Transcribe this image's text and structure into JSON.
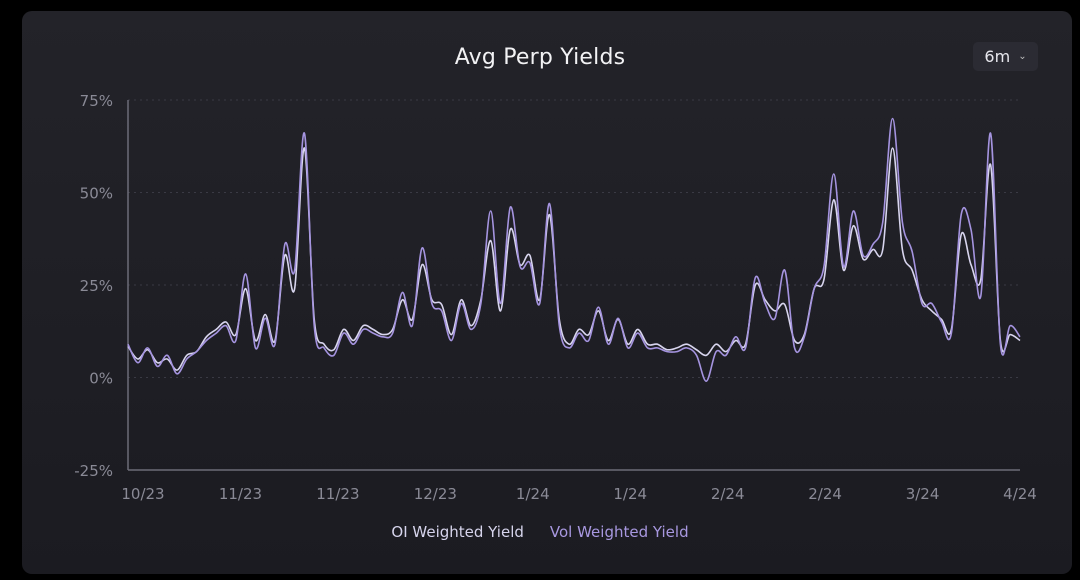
{
  "header": {
    "title": "Avg Perp Yields",
    "range_selector": "6m",
    "range_chevron": "⌄"
  },
  "colors": {
    "oi": "#d8d5ee",
    "vol": "#a594e0",
    "grid": "#3a3a44",
    "axis": "#6c6c78",
    "tick": "#8a8a96"
  },
  "chart_data": {
    "type": "line",
    "title": "Avg Perp Yields",
    "xlabel": "",
    "ylabel": "",
    "ylim": [
      -25,
      75
    ],
    "yticks": [
      75,
      50,
      25,
      0,
      -25
    ],
    "ytick_labels": [
      "75%",
      "50%",
      "25%",
      "0%",
      "-25%"
    ],
    "xtick_labels": [
      "10/23",
      "11/23",
      "11/23",
      "12/23",
      "1/24",
      "1/24",
      "2/24",
      "2/24",
      "3/24",
      "4/24"
    ],
    "grid": true,
    "legend_position": "bottom-center",
    "series": [
      {
        "name": "OI Weighted Yield",
        "values": [
          8.4,
          5,
          7.5,
          4,
          5,
          2,
          6,
          7,
          11,
          13,
          15,
          11.6,
          24,
          10,
          17,
          10,
          33,
          24,
          62,
          15.7,
          9,
          7.5,
          13,
          10,
          14,
          13,
          11.6,
          13,
          21,
          15.7,
          30.5,
          21,
          19.7,
          11.6,
          21,
          14,
          21,
          37,
          18,
          40,
          30.5,
          33,
          21,
          44,
          15.7,
          9,
          13,
          11.6,
          18,
          10,
          15.7,
          9,
          13,
          9,
          9,
          7.5,
          8,
          9,
          7.5,
          6,
          9,
          7,
          10,
          9,
          25,
          21,
          18,
          19.7,
          10,
          11.6,
          24,
          26.5,
          48,
          29,
          41,
          32,
          34.6,
          34.6,
          62,
          34.6,
          29,
          21,
          18,
          15.7,
          13,
          38.6,
          30.5,
          26.5,
          57.5,
          10,
          11.6,
          10
        ]
      },
      {
        "name": "Vol Weighted Yield",
        "values": [
          9,
          4,
          8,
          3,
          6,
          1,
          5,
          7,
          10,
          12,
          14,
          10,
          28,
          8,
          16,
          9,
          36,
          29,
          66,
          14,
          8,
          6,
          12,
          9,
          13,
          12,
          11,
          12,
          23,
          14,
          35,
          20,
          18,
          10,
          20,
          13,
          20,
          45,
          20,
          46,
          30,
          31,
          20,
          47,
          14,
          8,
          12,
          10,
          19,
          9,
          16,
          8,
          12,
          8,
          8,
          7,
          7,
          8,
          6,
          -1,
          7,
          6,
          11,
          8,
          27,
          20,
          16,
          29,
          8,
          11,
          24,
          30,
          55,
          30,
          45,
          33,
          36,
          42,
          70,
          42,
          34,
          20,
          20,
          15,
          12,
          44,
          40,
          22,
          66,
          9,
          14,
          11
        ]
      }
    ]
  }
}
